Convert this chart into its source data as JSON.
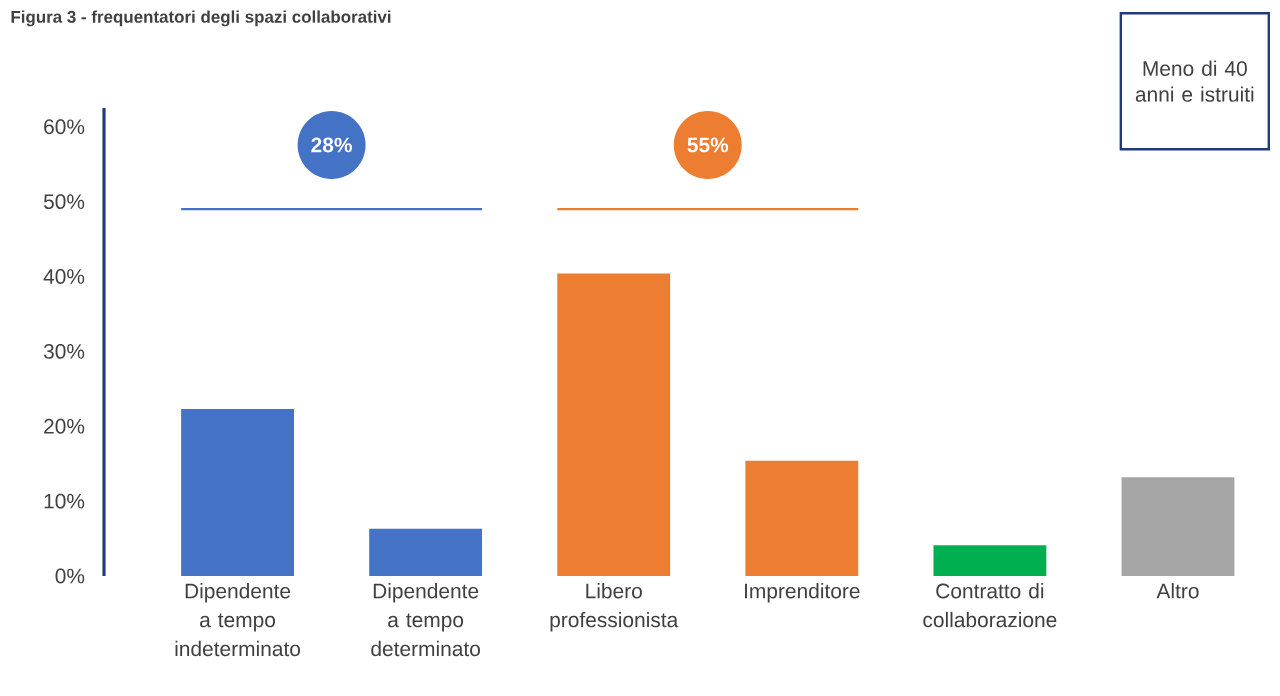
{
  "chart_data": {
    "type": "bar",
    "title": "Figura 3 - frequentatori degli spazi collaborativi",
    "categories": [
      "Dipendente a tempo indeterminato",
      "Dipendente a tempo determinato",
      "Libero professionista",
      "Imprenditore",
      "Contratto di collaborazione",
      "Altro"
    ],
    "values": [
      22.3,
      6.3,
      40.4,
      15.4,
      4.1,
      13.2
    ],
    "colors": [
      "#4472c4",
      "#4472c4",
      "#ed7d31",
      "#ed7d31",
      "#00b050",
      "#a5a5a5"
    ],
    "ylim": [
      0,
      62.5
    ],
    "yticks": [
      {
        "value": 0,
        "label": "0%"
      },
      {
        "value": 10,
        "label": "10%"
      },
      {
        "value": 20,
        "label": "20%"
      },
      {
        "value": 30,
        "label": "30%"
      },
      {
        "value": 40,
        "label": "40%"
      },
      {
        "value": 50,
        "label": "50%"
      },
      {
        "value": 60,
        "label": "60%"
      }
    ],
    "annotations": [
      "28%",
      "55%",
      "Meno di 40 anni e istruiti"
    ]
  }
}
